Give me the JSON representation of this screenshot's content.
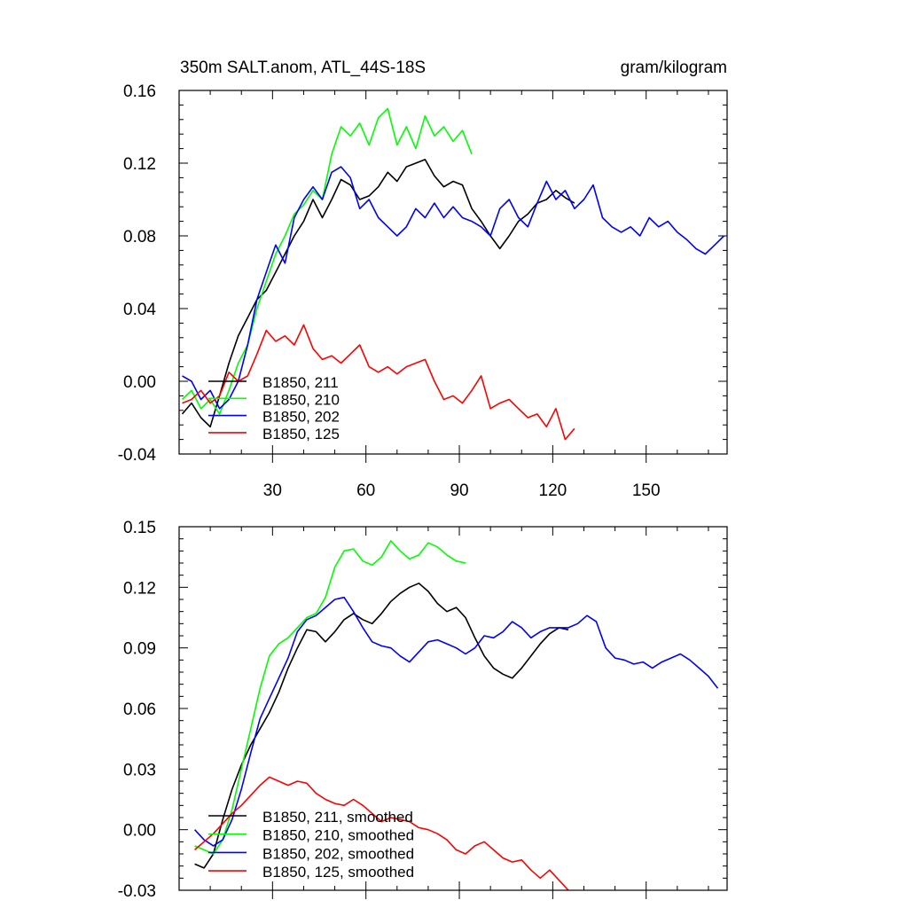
{
  "chart_data": [
    {
      "type": "line",
      "title_left": "350m SALT.anom, ATL_44S-18S",
      "title_right": "gram/kilogram",
      "xlim": [
        0,
        176
      ],
      "ylim": [
        -0.04,
        0.16
      ],
      "x_ticks": [
        30,
        60,
        90,
        120,
        150
      ],
      "x_tick_labels": [
        "30",
        "60",
        "90",
        "120",
        "150"
      ],
      "y_ticks": [
        -0.04,
        0.0,
        0.04,
        0.08,
        0.12,
        0.16
      ],
      "y_tick_labels": [
        "-0.04",
        "0.00",
        "0.04",
        "0.08",
        "0.12",
        "0.16"
      ],
      "series": [
        {
          "name": "B1850, 211",
          "color": "#000000",
          "x": [
            1,
            4,
            7,
            10,
            13,
            16,
            19,
            22,
            25,
            28,
            31,
            34,
            37,
            40,
            43,
            46,
            49,
            52,
            55,
            58,
            61,
            64,
            67,
            70,
            73,
            76,
            79,
            82,
            85,
            88,
            91,
            94,
            97,
            100,
            103,
            106,
            109,
            112,
            115,
            118,
            121,
            124,
            127
          ],
          "y": [
            -0.018,
            -0.012,
            -0.02,
            -0.025,
            -0.008,
            0.01,
            0.025,
            0.035,
            0.045,
            0.05,
            0.06,
            0.07,
            0.08,
            0.088,
            0.1,
            0.09,
            0.1,
            0.111,
            0.108,
            0.1,
            0.102,
            0.107,
            0.115,
            0.11,
            0.118,
            0.12,
            0.122,
            0.113,
            0.107,
            0.11,
            0.108,
            0.095,
            0.088,
            0.08,
            0.073,
            0.08,
            0.088,
            0.092,
            0.098,
            0.1,
            0.105,
            0.101,
            0.098
          ]
        },
        {
          "name": "B1850, 210",
          "color": "#00ff00",
          "x": [
            1,
            4,
            7,
            10,
            13,
            16,
            19,
            22,
            25,
            28,
            31,
            34,
            37,
            40,
            43,
            46,
            49,
            52,
            55,
            58,
            61,
            64,
            67,
            70,
            73,
            76,
            79,
            82,
            85,
            88,
            91,
            94
          ],
          "y": [
            -0.01,
            -0.005,
            -0.015,
            -0.01,
            -0.018,
            -0.005,
            0.01,
            0.02,
            0.04,
            0.055,
            0.07,
            0.08,
            0.092,
            0.097,
            0.105,
            0.1,
            0.125,
            0.14,
            0.135,
            0.142,
            0.13,
            0.145,
            0.15,
            0.13,
            0.14,
            0.128,
            0.146,
            0.135,
            0.14,
            0.132,
            0.138,
            0.125
          ]
        },
        {
          "name": "B1850, 202",
          "color": "#0000ff",
          "x": [
            1,
            4,
            7,
            10,
            13,
            16,
            19,
            22,
            25,
            28,
            31,
            34,
            37,
            40,
            43,
            46,
            49,
            52,
            55,
            58,
            61,
            64,
            67,
            70,
            73,
            76,
            79,
            82,
            85,
            88,
            91,
            94,
            97,
            100,
            103,
            106,
            109,
            112,
            115,
            118,
            121,
            124,
            127,
            130,
            133,
            136,
            139,
            142,
            145,
            148,
            151,
            154,
            157,
            160,
            163,
            166,
            169,
            172,
            175
          ],
          "y": [
            0.003,
            0.0,
            -0.01,
            -0.005,
            -0.015,
            -0.01,
            0.0,
            0.02,
            0.045,
            0.06,
            0.075,
            0.065,
            0.09,
            0.1,
            0.107,
            0.1,
            0.115,
            0.118,
            0.112,
            0.095,
            0.1,
            0.09,
            0.085,
            0.08,
            0.085,
            0.095,
            0.09,
            0.098,
            0.09,
            0.096,
            0.09,
            0.088,
            0.085,
            0.08,
            0.095,
            0.1,
            0.09,
            0.085,
            0.098,
            0.11,
            0.1,
            0.105,
            0.095,
            0.1,
            0.108,
            0.09,
            0.085,
            0.082,
            0.085,
            0.08,
            0.09,
            0.085,
            0.088,
            0.082,
            0.078,
            0.073,
            0.07,
            0.075,
            0.08
          ]
        },
        {
          "name": "B1850, 125",
          "color": "#ff0000",
          "x": [
            1,
            4,
            7,
            10,
            13,
            16,
            19,
            22,
            25,
            28,
            31,
            34,
            37,
            40,
            43,
            46,
            49,
            52,
            55,
            58,
            61,
            64,
            67,
            70,
            73,
            76,
            79,
            82,
            85,
            88,
            91,
            94,
            97,
            100,
            103,
            106,
            109,
            112,
            115,
            118,
            121,
            124,
            127
          ],
          "y": [
            -0.012,
            -0.01,
            -0.005,
            -0.012,
            -0.008,
            0.005,
            0.0,
            0.003,
            0.015,
            0.028,
            0.022,
            0.025,
            0.02,
            0.031,
            0.018,
            0.012,
            0.014,
            0.01,
            0.015,
            0.02,
            0.008,
            0.005,
            0.008,
            0.004,
            0.008,
            0.01,
            0.012,
            0.0,
            -0.01,
            -0.008,
            -0.012,
            -0.005,
            0.003,
            -0.015,
            -0.012,
            -0.01,
            -0.015,
            -0.02,
            -0.018,
            -0.025,
            -0.015,
            -0.032,
            -0.026
          ]
        }
      ],
      "legend": [
        "B1850, 211",
        "B1850, 210",
        "B1850, 202",
        "B1850, 125"
      ],
      "legend_position": "bottom-left"
    },
    {
      "type": "line",
      "xlim": [
        0,
        176
      ],
      "ylim": [
        -0.03,
        0.15
      ],
      "x_ticks": [
        30,
        60,
        90,
        120,
        150
      ],
      "y_ticks": [
        -0.03,
        0.0,
        0.03,
        0.06,
        0.09,
        0.12,
        0.15
      ],
      "y_tick_labels": [
        "-0.03",
        "0.00",
        "0.03",
        "0.06",
        "0.09",
        "0.12",
        "0.15"
      ],
      "series": [
        {
          "name": "B1850, 211, smoothed",
          "color": "#000000",
          "x": [
            5,
            8,
            11,
            14,
            17,
            20,
            23,
            26,
            29,
            32,
            35,
            38,
            41,
            44,
            47,
            50,
            53,
            56,
            59,
            62,
            65,
            68,
            71,
            74,
            77,
            80,
            83,
            86,
            89,
            92,
            95,
            98,
            101,
            104,
            107,
            110,
            113,
            116,
            119,
            122,
            125
          ],
          "y": [
            -0.017,
            -0.019,
            -0.012,
            0.005,
            0.02,
            0.032,
            0.042,
            0.05,
            0.058,
            0.068,
            0.08,
            0.09,
            0.099,
            0.098,
            0.093,
            0.098,
            0.104,
            0.107,
            0.104,
            0.102,
            0.107,
            0.113,
            0.117,
            0.12,
            0.122,
            0.118,
            0.112,
            0.108,
            0.11,
            0.105,
            0.095,
            0.086,
            0.08,
            0.077,
            0.075,
            0.08,
            0.086,
            0.092,
            0.097,
            0.1,
            0.099
          ]
        },
        {
          "name": "B1850, 210, smoothed",
          "color": "#00ff00",
          "x": [
            5,
            8,
            11,
            14,
            17,
            20,
            23,
            26,
            29,
            32,
            35,
            38,
            41,
            44,
            47,
            50,
            53,
            56,
            59,
            62,
            65,
            68,
            71,
            74,
            77,
            80,
            83,
            86,
            89,
            92
          ],
          "y": [
            -0.008,
            -0.01,
            -0.012,
            -0.005,
            0.01,
            0.03,
            0.05,
            0.07,
            0.086,
            0.092,
            0.095,
            0.1,
            0.105,
            0.107,
            0.115,
            0.13,
            0.138,
            0.139,
            0.133,
            0.131,
            0.135,
            0.143,
            0.138,
            0.134,
            0.136,
            0.142,
            0.14,
            0.136,
            0.133,
            0.132
          ]
        },
        {
          "name": "B1850, 202, smoothed",
          "color": "#0000ff",
          "x": [
            5,
            8,
            11,
            14,
            17,
            20,
            23,
            26,
            29,
            32,
            35,
            38,
            41,
            44,
            47,
            50,
            53,
            56,
            59,
            62,
            65,
            68,
            71,
            74,
            77,
            80,
            83,
            86,
            89,
            92,
            95,
            98,
            101,
            104,
            107,
            110,
            113,
            116,
            119,
            122,
            125,
            128,
            131,
            134,
            137,
            140,
            143,
            146,
            149,
            152,
            155,
            158,
            161,
            164,
            167,
            170,
            173
          ],
          "y": [
            0.0,
            -0.005,
            -0.008,
            -0.005,
            0.005,
            0.02,
            0.038,
            0.055,
            0.065,
            0.075,
            0.085,
            0.098,
            0.104,
            0.106,
            0.11,
            0.114,
            0.115,
            0.108,
            0.1,
            0.093,
            0.091,
            0.09,
            0.086,
            0.083,
            0.088,
            0.093,
            0.094,
            0.092,
            0.09,
            0.087,
            0.09,
            0.096,
            0.095,
            0.098,
            0.103,
            0.1,
            0.095,
            0.098,
            0.1,
            0.1,
            0.1,
            0.102,
            0.106,
            0.103,
            0.09,
            0.085,
            0.084,
            0.082,
            0.083,
            0.08,
            0.083,
            0.085,
            0.087,
            0.084,
            0.08,
            0.076,
            0.07
          ]
        },
        {
          "name": "B1850, 125, smoothed",
          "color": "#ff0000",
          "x": [
            5,
            8,
            11,
            14,
            17,
            20,
            23,
            26,
            29,
            32,
            35,
            38,
            41,
            44,
            47,
            50,
            53,
            56,
            59,
            62,
            65,
            68,
            71,
            74,
            77,
            80,
            83,
            86,
            89,
            92,
            95,
            98,
            101,
            104,
            107,
            110,
            113,
            116,
            119,
            122,
            125
          ],
          "y": [
            -0.01,
            -0.006,
            -0.002,
            0.003,
            0.008,
            0.012,
            0.017,
            0.022,
            0.026,
            0.024,
            0.022,
            0.024,
            0.023,
            0.018,
            0.015,
            0.013,
            0.012,
            0.015,
            0.012,
            0.008,
            0.004,
            0.006,
            0.005,
            0.004,
            0.001,
            0.0,
            -0.002,
            -0.005,
            -0.01,
            -0.012,
            -0.008,
            -0.006,
            -0.01,
            -0.014,
            -0.016,
            -0.015,
            -0.02,
            -0.024,
            -0.02,
            -0.025,
            -0.03
          ]
        }
      ],
      "legend": [
        "B1850, 211, smoothed",
        "B1850, 210, smoothed",
        "B1850, 202, smoothed",
        "B1850, 125, smoothed"
      ],
      "legend_position": "bottom-left"
    }
  ]
}
